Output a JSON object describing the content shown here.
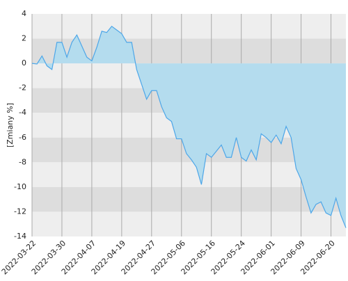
{
  "chart_data": {
    "type": "area",
    "y_label": "[Zmiany %]",
    "categories": [
      "2022-03-22",
      null,
      null,
      null,
      null,
      null,
      "2022-03-30",
      null,
      null,
      null,
      null,
      null,
      "2022-04-07",
      null,
      null,
      null,
      null,
      null,
      "2022-04-19",
      null,
      null,
      null,
      null,
      null,
      "2022-04-27",
      null,
      null,
      null,
      null,
      null,
      "2022-05-06",
      null,
      null,
      null,
      null,
      null,
      "2022-05-16",
      null,
      null,
      null,
      null,
      null,
      "2022-05-24",
      null,
      null,
      null,
      null,
      null,
      "2022-06-01",
      null,
      null,
      null,
      null,
      null,
      "2022-06-09",
      null,
      null,
      null,
      null,
      null,
      "2022-06-20",
      null,
      null,
      null
    ],
    "series": [
      {
        "color": "#4da6e8",
        "fill": "#b4dcee",
        "values": [
          0,
          -0.05,
          0.6,
          -0.2,
          -0.5,
          1.7,
          1.7,
          0.5,
          1.7,
          2.3,
          1.4,
          0.5,
          0.2,
          1.3,
          2.6,
          2.5,
          3.0,
          2.7,
          2.4,
          1.7,
          1.7,
          -0.5,
          -1.7,
          -2.9,
          -2.2,
          -2.2,
          -3.5,
          -4.4,
          -4.7,
          -6.1,
          -6.1,
          -7.3,
          -7.8,
          -8.4,
          -9.8,
          -7.3,
          -7.6,
          -7.1,
          -6.6,
          -7.6,
          -7.6,
          -6.0,
          -7.6,
          -7.9,
          -7.0,
          -7.8,
          -5.7,
          -6.0,
          -6.4,
          -5.8,
          -6.5,
          -5.1,
          -6.0,
          -8.5,
          -9.4,
          -10.8,
          -12.1,
          -11.4,
          -11.2,
          -12.1,
          -12.3,
          -10.9,
          -12.3,
          -13.3
        ]
      }
    ],
    "ylim": [
      -14,
      4
    ],
    "yticks": [
      -14,
      -12,
      -10,
      -8,
      -6,
      -4,
      -2,
      0,
      2,
      4
    ],
    "grid": true,
    "band_colors": [
      "#eeeeee",
      "#dddddd"
    ]
  }
}
